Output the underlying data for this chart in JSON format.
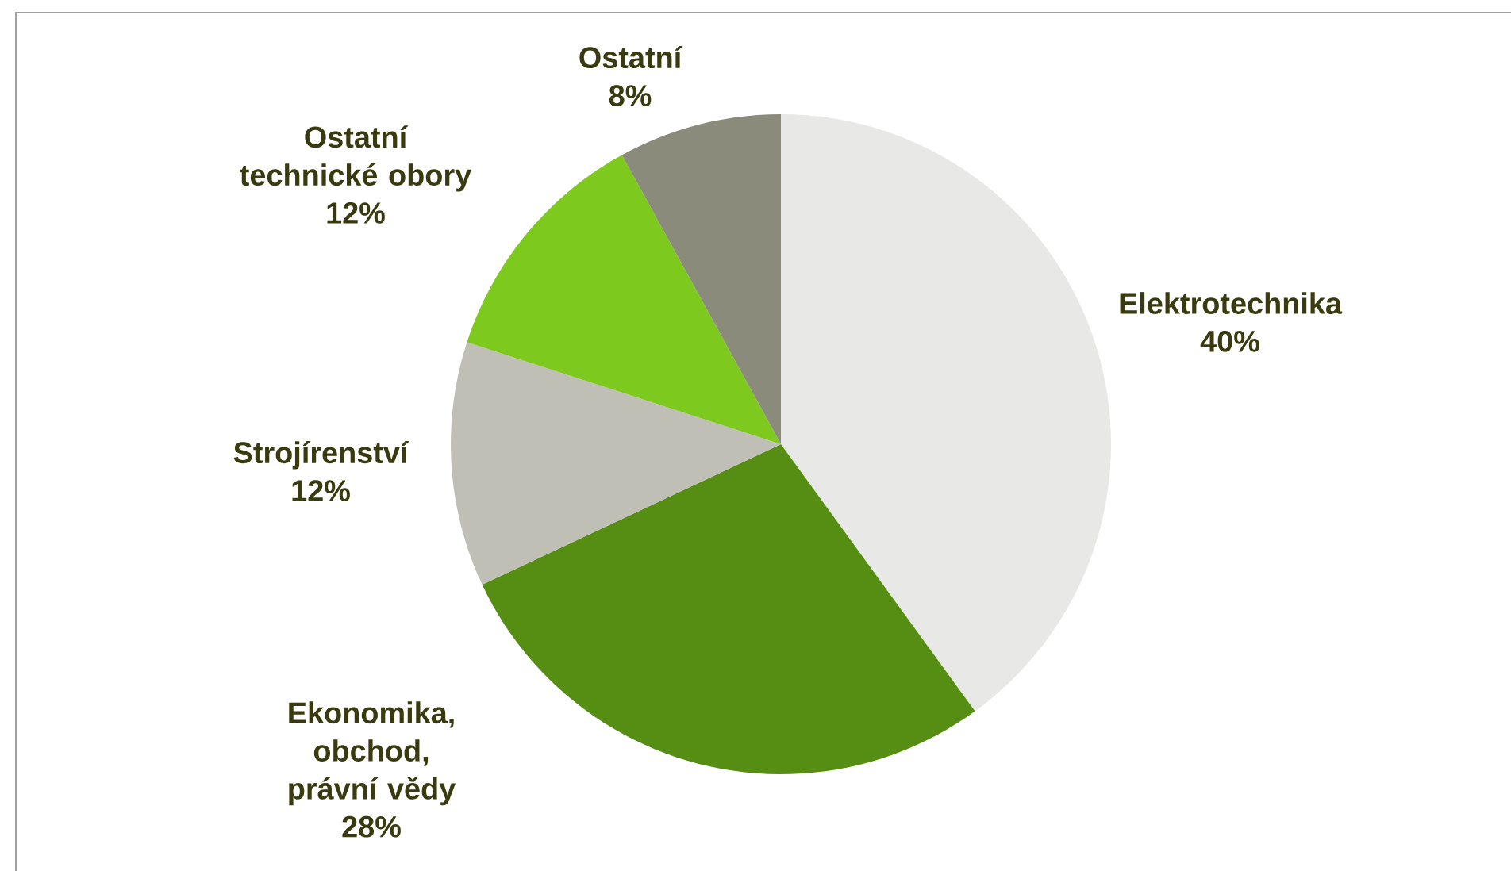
{
  "chart_data": {
    "type": "pie",
    "categories": [
      "Elektrotechnika",
      "Ekonomika, obchod, právní vědy",
      "Strojírenství",
      "Ostatní technické obory",
      "Ostatní"
    ],
    "values": [
      40,
      28,
      12,
      12,
      8
    ],
    "value_labels": [
      "40%",
      "28%",
      "12%",
      "12%",
      "8%"
    ],
    "colors": [
      "#e8e8e6",
      "#558e13",
      "#c0bfb6",
      "#7dc91d",
      "#8b8b7b"
    ]
  }
}
